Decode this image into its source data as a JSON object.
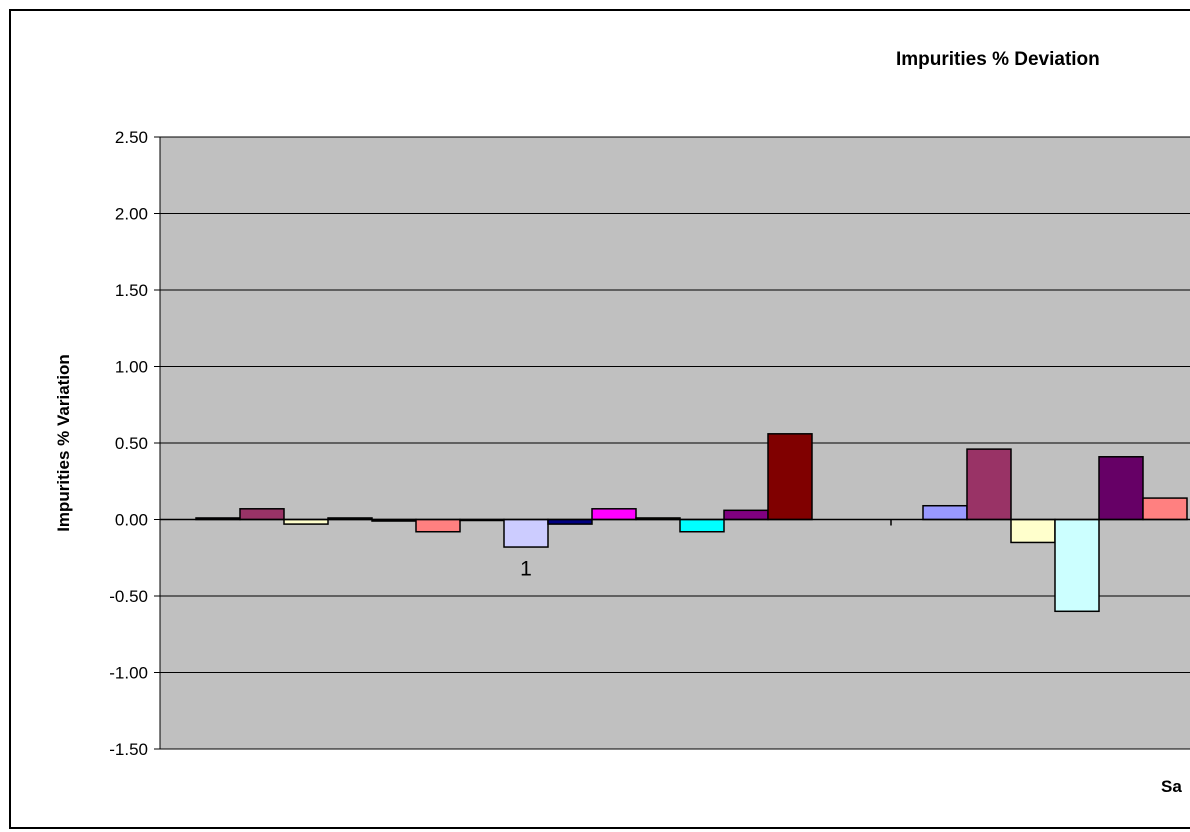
{
  "chart_data": {
    "type": "bar",
    "title": "Impurities % Deviation",
    "ylabel": "Impurities % Variation",
    "xlabel": "Sa",
    "ylim": [
      -1.5,
      2.5
    ],
    "yticks": [
      "2.50",
      "2.00",
      "1.50",
      "1.00",
      "0.50",
      "0.00",
      "-0.50",
      "-1.00",
      "-1.50"
    ],
    "ytick_values": [
      2.5,
      2.0,
      1.5,
      1.0,
      0.5,
      0.0,
      -0.5,
      -1.0,
      -1.5
    ],
    "grid": true,
    "plot_background": "#c0c0c0",
    "categories": [
      "1",
      ""
    ],
    "groups": [
      {
        "category": "1",
        "bars": [
          {
            "value": 0.01,
            "color": "#000080"
          },
          {
            "value": 0.07,
            "color": "#993366"
          },
          {
            "value": -0.03,
            "color": "#ffffcc"
          },
          {
            "value": 0.01,
            "color": "#ccffff"
          },
          {
            "value": -0.01,
            "color": "#660066"
          },
          {
            "value": -0.08,
            "color": "#ff8080"
          },
          {
            "value": 0.0,
            "color": "#0066cc"
          },
          {
            "value": -0.18,
            "color": "#ccccff"
          },
          {
            "value": -0.03,
            "color": "#000080"
          },
          {
            "value": 0.07,
            "color": "#ff00ff"
          },
          {
            "value": 0.01,
            "color": "#ffff00"
          },
          {
            "value": -0.08,
            "color": "#00ffff"
          },
          {
            "value": 0.06,
            "color": "#800080"
          },
          {
            "value": 0.56,
            "color": "#800000"
          }
        ]
      },
      {
        "category": "",
        "bars": [
          {
            "value": 0.09,
            "color": "#9999ff"
          },
          {
            "value": 0.46,
            "color": "#993366"
          },
          {
            "value": -0.15,
            "color": "#ffffcc"
          },
          {
            "value": -0.6,
            "color": "#ccffff"
          },
          {
            "value": 0.41,
            "color": "#660066"
          },
          {
            "value": 0.14,
            "color": "#ff8080"
          }
        ]
      }
    ]
  }
}
